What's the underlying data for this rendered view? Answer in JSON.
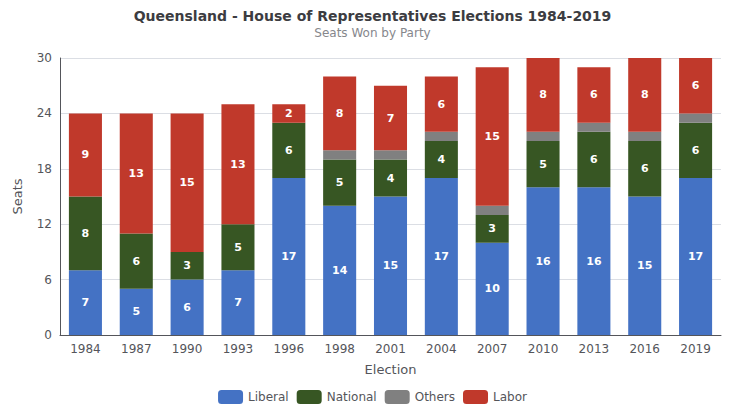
{
  "chart_data": {
    "type": "bar",
    "title": "Queensland - House of Representatives Elections 1984-2019",
    "subtitle": "Seats Won by Party",
    "xlabel": "Election",
    "ylabel": "Seats",
    "categories": [
      "1984",
      "1987",
      "1990",
      "1993",
      "1996",
      "1998",
      "2001",
      "2004",
      "2007",
      "2010",
      "2013",
      "2016",
      "2019"
    ],
    "series": [
      {
        "name": "Liberal",
        "color": "#4472C4",
        "data_labels": true,
        "values": [
          7,
          5,
          6,
          7,
          17,
          14,
          15,
          17,
          10,
          16,
          16,
          15,
          17
        ]
      },
      {
        "name": "National",
        "color": "#375623",
        "data_labels": true,
        "values": [
          8,
          6,
          3,
          5,
          6,
          5,
          4,
          4,
          3,
          5,
          6,
          6,
          6
        ]
      },
      {
        "name": "Others",
        "color": "#808080",
        "data_labels": false,
        "values": [
          0,
          0,
          0,
          0,
          0,
          1,
          1,
          1,
          1,
          1,
          1,
          1,
          1
        ]
      },
      {
        "name": "Labor",
        "color": "#C0392B",
        "data_labels": true,
        "values": [
          9,
          13,
          15,
          13,
          2,
          8,
          7,
          6,
          15,
          8,
          6,
          8,
          6
        ]
      }
    ],
    "stacked": true,
    "ylim": [
      0,
      30
    ],
    "yticks": [
      0,
      6,
      12,
      18,
      24,
      30
    ],
    "grid": true,
    "legend": "bottom"
  }
}
